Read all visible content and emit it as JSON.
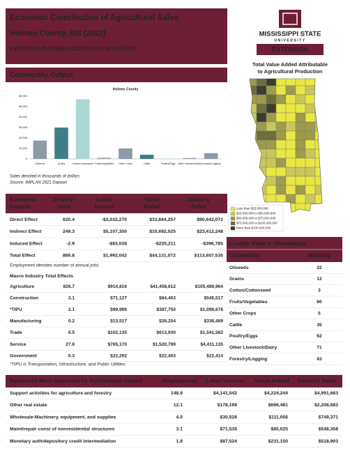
{
  "header": {
    "title": "Economic Contribution of Agricultural Sales",
    "subtitle": "Holmes County, MS (2022)",
    "url": "extension.msstate.edu/economic-profiles"
  },
  "logo": {
    "name": "MISSISSIPPI STATE",
    "sub": "UNIVERSITY",
    "unit": "EXTENSION"
  },
  "map": {
    "title": [
      "Total Value Added Attributable",
      "to Agricultural Production"
    ],
    "legend": [
      {
        "label": "Less than $25,000,000",
        "color": "#e9e843"
      },
      {
        "label": "$25,000,000 to $50,000,000",
        "color": "#c8c85a"
      },
      {
        "label": "$50,000,000 to $75,000,000",
        "color": "#9c9c4c"
      },
      {
        "label": "$75,000,000 to $100,000,000",
        "color": "#6e6e3c"
      },
      {
        "label": "More than $100,000,000",
        "color": "#3d3d2c"
      }
    ]
  },
  "commodity_output": {
    "heading": "Commodity Output",
    "chart": {
      "type": "bar",
      "title": "Holmes County",
      "categories": [
        "Oilseeds",
        "Grains",
        "Cotton/Cottonseed",
        "Fruits/Vegetables",
        "Other Crops",
        "Cattle",
        "Poultry/Eggs",
        "Other Livestock/Dairy",
        "Forestry/Logging"
      ],
      "values": [
        17500,
        30000,
        57000,
        1000,
        10000,
        4000,
        300,
        800,
        5500
      ],
      "colors": [
        "#8d9ba7",
        "#3e7f87",
        "#a9d9d2",
        "#8d9ba7",
        "#8d9ba7",
        "#3e7f87",
        "#a9d9d2",
        "#8d9ba7",
        "#8d9ba7"
      ],
      "ylim": [
        0,
        60000
      ],
      "yticks": [
        0,
        {
          "value": 10000,
          "label": "10,000"
        },
        {
          "value": 20000,
          "label": "20,000"
        },
        {
          "value": 30000,
          "label": "30,000"
        },
        {
          "value": 40000,
          "label": "40,000"
        },
        {
          "value": 50000,
          "label": "50,000"
        },
        {
          "value": 60000,
          "label": "60,000"
        }
      ]
    },
    "notes": [
      "Sales denoted in thousands of dollars",
      "Source: IMPLAN 2021 Dataset"
    ]
  },
  "economic_impacts": {
    "columns": [
      [
        "Economic",
        "Impacts"
      ],
      [
        "Employ-",
        "ment"
      ],
      [
        "Labor",
        "Income"
      ],
      [
        "Value",
        "Added"
      ],
      [
        "Industry",
        "Sales"
      ]
    ],
    "rows": [
      [
        "Direct Effect",
        "620.4",
        "-$3,032,270",
        "$33,664,257",
        "$90,642,072"
      ],
      [
        "Indirect Effect",
        "249.3",
        "$5,107,350",
        "$10,692,025",
        "$23,412,248"
      ],
      [
        "Induced Effect",
        "-2.9",
        "-$83,038",
        "-$225,211",
        "-$396,785"
      ],
      [
        "Total Effect",
        "866.8",
        "$1,992,042",
        "$44,131,072",
        "$113,657,535"
      ]
    ],
    "note": "Employment denotes number of annual jobs."
  },
  "macro": {
    "heading": "Macro Industry Total Effects",
    "rows": [
      [
        "Agriculture",
        "826.7",
        "$914,816",
        "$41,458,612",
        "$105,489,964"
      ],
      [
        "Construction",
        "3.1",
        "$71,127",
        "$84,463",
        "$545,517"
      ],
      [
        "*TIPU",
        "2.1",
        "$99,996",
        "$387,750",
        "$1,096,676"
      ],
      [
        "Manufacturing",
        "0.2",
        "$13,517",
        "$26,254",
        "$336,469"
      ],
      [
        "Trade",
        "6.5",
        "$102,135",
        "$613,930",
        "$1,541,562"
      ],
      [
        "Service",
        "27.6",
        "$765,170",
        "$1,520,799",
        "$4,411,135"
      ],
      [
        "Government",
        "0.3",
        "$22,292",
        "$22,403",
        "$22,414"
      ]
    ],
    "note": "*TIPU is Transportation, Infrastructure, and Public Utilities"
  },
  "county_rank": {
    "title": "County Rank in Mississippi",
    "columns": [
      "Commodity",
      "Ranking"
    ],
    "rows": [
      [
        "Oilseeds",
        "22"
      ],
      [
        "Grains",
        "12"
      ],
      [
        "Cotton/Cottonseed",
        "3"
      ],
      [
        "Fruits/Vegetables",
        "60"
      ],
      [
        "Other Crops",
        "5"
      ],
      [
        "Cattle",
        "35"
      ],
      [
        "Poultry/Eggs",
        "62"
      ],
      [
        "Other Livestock/Dairy",
        "71"
      ],
      [
        "Forestry/Logging",
        "63"
      ]
    ]
  },
  "industries": {
    "columns": [
      "Industries Most Impacted by Agricultural Output",
      "Employment",
      "Labor Income",
      "Value-Added",
      "Industry Sales"
    ],
    "rows": [
      [
        "Support activities for agriculture and forestry",
        "148.9",
        "$4,141,542",
        "$4,224,244",
        "$4,991,683"
      ],
      [
        "Other real estate",
        "12.1",
        "$178,199",
        "$696,481",
        "$2,208,683"
      ],
      [
        "Wholesale-Machinery, equipment, and supplies",
        "4.0",
        "$30,528",
        "$111,056",
        "$749,371"
      ],
      [
        "Maint/repair const of nonresidential structures",
        "3.1",
        "$71,535",
        "$85,025",
        "$548,358"
      ],
      [
        "Monetary auth/depository credit intermediation",
        "1.8",
        "$87,524",
        "$231,150",
        "$518,903"
      ]
    ]
  }
}
